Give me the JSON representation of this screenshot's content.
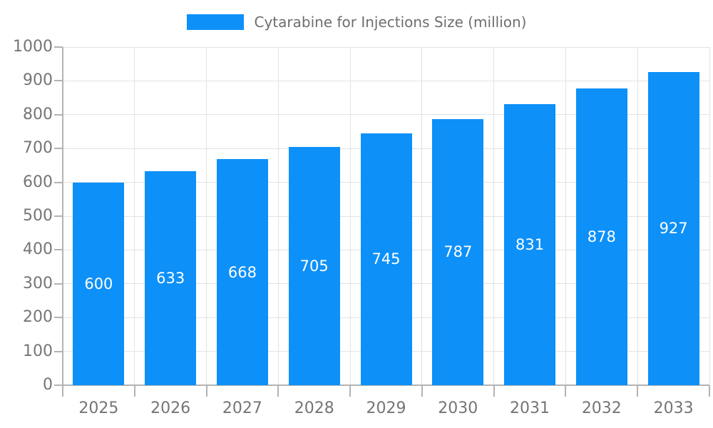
{
  "legend": {
    "label": "Cytarabine for Injections Size (million)"
  },
  "chart_data": {
    "type": "bar",
    "title": "Cytarabine for Injections Size (million)",
    "series_name": "Cytarabine for Injections Size (million)",
    "categories": [
      "2025",
      "2026",
      "2027",
      "2028",
      "2029",
      "2030",
      "2031",
      "2032",
      "2033"
    ],
    "values": [
      600,
      633,
      668,
      705,
      745,
      787,
      831,
      878,
      927
    ],
    "bar_value_labels": [
      "600",
      "633",
      "668",
      "705",
      "745",
      "787",
      "831",
      "878",
      "927"
    ],
    "xlabel": "",
    "ylabel": "",
    "ylim": [
      0,
      1000
    ],
    "ytick_step": 100,
    "ytick_labels": [
      "0",
      "100",
      "200",
      "300",
      "400",
      "500",
      "600",
      "700",
      "800",
      "900",
      "1000"
    ],
    "grid": true,
    "legend_position": "top"
  },
  "colors": {
    "bar": "#0d90f8",
    "grid": "#e3e3e3",
    "axis": "#b3b3b3",
    "tick_text": "#757575",
    "legend_text": "#6e6e6e",
    "bar_label": "#ffffff",
    "background": "#ffffff"
  }
}
